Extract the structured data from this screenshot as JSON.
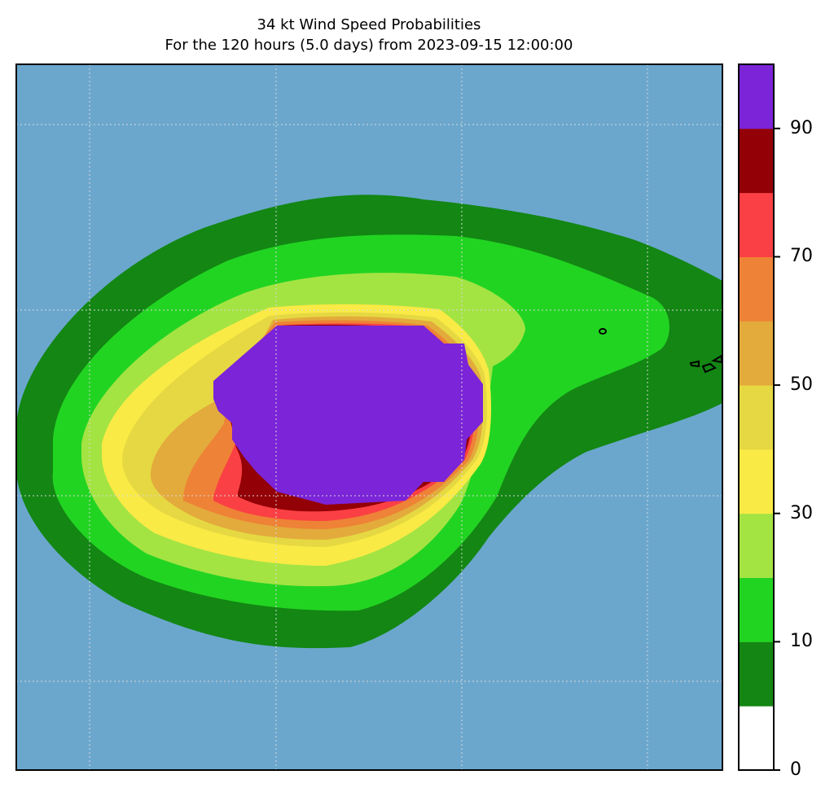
{
  "title": {
    "line1": "34 kt Wind Speed Probabilities",
    "line2": "For the 120 hours (5.0 days) from 2023-09-15 12:00:00"
  },
  "map": {
    "ocean_color": "#6ba7cd",
    "gridline_color": "#d8d8d8",
    "coastline_color": "#000000"
  },
  "colorbar": {
    "levels": [
      0,
      10,
      20,
      30,
      40,
      50,
      60,
      70,
      80,
      90,
      100
    ],
    "colors": [
      "#ffffff",
      "#138613",
      "#22d422",
      "#a3e443",
      "#faea45",
      "#e6d842",
      "#e3aa3c",
      "#ee8236",
      "#fa4044",
      "#930006",
      "#7b24d8"
    ],
    "tick_labels": [
      "0",
      "10",
      "30",
      "50",
      "70",
      "90"
    ]
  }
}
